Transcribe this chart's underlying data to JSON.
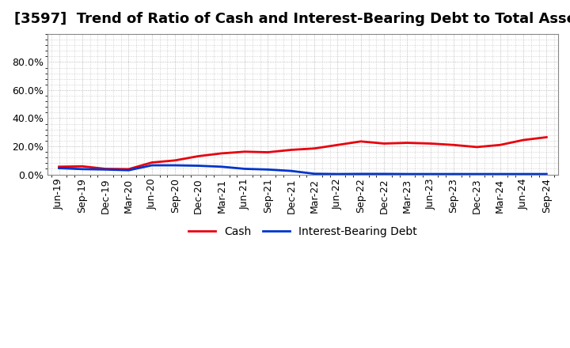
{
  "title": "[3597]  Trend of Ratio of Cash and Interest-Bearing Debt to Total Assets",
  "x_labels": [
    "Jun-19",
    "Sep-19",
    "Dec-19",
    "Mar-20",
    "Jun-20",
    "Sep-20",
    "Dec-20",
    "Mar-21",
    "Jun-21",
    "Sep-21",
    "Dec-21",
    "Mar-22",
    "Jun-22",
    "Sep-22",
    "Dec-22",
    "Mar-23",
    "Jun-23",
    "Sep-23",
    "Dec-23",
    "Mar-24",
    "Jun-24",
    "Sep-24"
  ],
  "cash": [
    0.055,
    0.058,
    0.04,
    0.038,
    0.085,
    0.1,
    0.13,
    0.15,
    0.162,
    0.158,
    0.175,
    0.185,
    0.21,
    0.235,
    0.22,
    0.225,
    0.22,
    0.21,
    0.195,
    0.21,
    0.245,
    0.265
  ],
  "ibd": [
    0.045,
    0.038,
    0.035,
    0.03,
    0.065,
    0.065,
    0.062,
    0.055,
    0.04,
    0.035,
    0.025,
    0.005,
    0.003,
    0.004,
    0.004,
    0.003,
    0.003,
    0.003,
    0.003,
    0.003,
    0.003,
    0.003
  ],
  "cash_color": "#e8000d",
  "ibd_color": "#0033cc",
  "background_color": "#ffffff",
  "plot_bg_color": "#ffffff",
  "grid_color": "#aaaaaa",
  "ylim_min": 0.0,
  "ylim_max": 1.0,
  "yticks": [
    0.0,
    0.2,
    0.4,
    0.6,
    0.8
  ],
  "legend_cash": "Cash",
  "legend_ibd": "Interest-Bearing Debt",
  "title_fontsize": 13,
  "tick_fontsize": 9,
  "legend_fontsize": 10,
  "line_width": 2.0
}
